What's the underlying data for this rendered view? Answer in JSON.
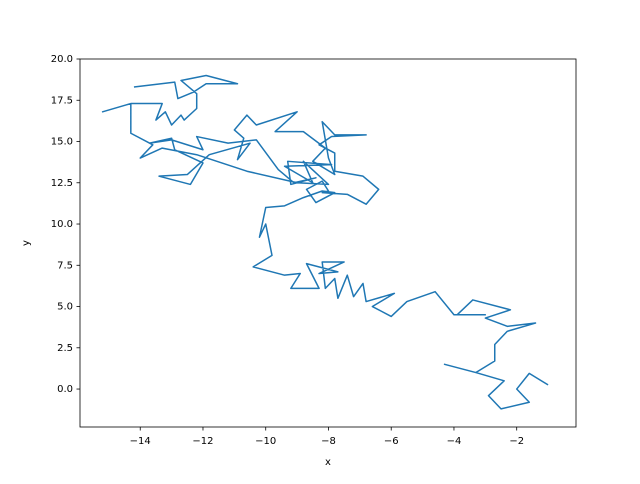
{
  "chart_data": {
    "type": "line",
    "xlabel": "x",
    "ylabel": "y",
    "xlim": [
      -15.92,
      -0.11
    ],
    "ylim": [
      -2.3,
      20.0
    ],
    "xticks": [
      {
        "value": -14,
        "label": "−14"
      },
      {
        "value": -12,
        "label": "−12"
      },
      {
        "value": -10,
        "label": "−10"
      },
      {
        "value": -8,
        "label": "−8"
      },
      {
        "value": -6,
        "label": "−6"
      },
      {
        "value": -4,
        "label": "−4"
      },
      {
        "value": -2,
        "label": "−2"
      }
    ],
    "yticks": [
      {
        "value": 0,
        "label": "0.0"
      },
      {
        "value": 2.5,
        "label": "2.5"
      },
      {
        "value": 5,
        "label": "5.0"
      },
      {
        "value": 7.5,
        "label": "7.5"
      },
      {
        "value": 10,
        "label": "10.0"
      },
      {
        "value": 12.5,
        "label": "12.5"
      },
      {
        "value": 15,
        "label": "15.0"
      },
      {
        "value": 17.5,
        "label": "17.5"
      },
      {
        "value": 20,
        "label": "20.0"
      }
    ],
    "series": [
      {
        "color": "#1f77b4",
        "x": [
          -1.0,
          -1.6,
          -2.0,
          -1.6,
          -2.5,
          -2.9,
          -2.4,
          -3.3,
          -4.3,
          -3.3,
          -2.7,
          -2.7,
          -2.3,
          -1.4,
          -2.3,
          -3.0,
          -2.2,
          -3.4,
          -3.9,
          -3.0,
          -4.0,
          -4.6,
          -5.5,
          -6.0,
          -6.6,
          -5.9,
          -6.8,
          -6.9,
          -7.2,
          -7.4,
          -7.7,
          -7.8,
          -8.1,
          -8.2,
          -7.5,
          -8.3,
          -7.7,
          -8.7,
          -8.3,
          -9.2,
          -8.9,
          -9.4,
          -10.4,
          -9.8,
          -10.0,
          -10.2,
          -10.0,
          -9.4,
          -8.8,
          -8.2,
          -7.8,
          -8.4,
          -8.7,
          -8.2,
          -8.0,
          -8.2,
          -7.4,
          -6.8,
          -6.4,
          -6.9,
          -7.8,
          -7.8,
          -8.3,
          -7.9,
          -6.8,
          -7.8,
          -8.2,
          -8.0,
          -7.8,
          -8.5,
          -8.1,
          -8.8,
          -9.7,
          -9.0,
          -10.3,
          -10.6,
          -11.0,
          -10.7,
          -10.9,
          -10.5,
          -11.8,
          -12.5,
          -13.4,
          -12.4,
          -12.0,
          -12.9,
          -13.0,
          -13.7,
          -13.0,
          -12.0,
          -12.2,
          -11.2,
          -10.3,
          -9.6,
          -9.1,
          -8.4,
          -9.2,
          -9.3,
          -7.9,
          -9.4,
          -8.5,
          -8.8,
          -8.0,
          -9.0,
          -10.6,
          -12.2,
          -13.3,
          -14.0,
          -13.6,
          -14.3,
          -14.3,
          -15.2,
          -14.3,
          -13.3,
          -13.5,
          -13.2,
          -13.0,
          -12.7,
          -12.6,
          -12.2,
          -12.2,
          -12.7,
          -11.9,
          -10.9,
          -11.9,
          -12.3,
          -12.8,
          -12.9,
          -14.2
        ],
        "y": [
          0.25,
          0.95,
          0.0,
          -0.8,
          -1.2,
          -0.4,
          0.5,
          1.0,
          1.5,
          1.0,
          1.7,
          2.7,
          3.5,
          4.0,
          3.8,
          4.3,
          4.8,
          5.4,
          4.5,
          4.5,
          4.5,
          5.9,
          5.3,
          4.4,
          5.0,
          5.8,
          5.3,
          6.4,
          5.6,
          6.9,
          5.5,
          6.7,
          6.1,
          7.7,
          7.7,
          7.0,
          7.1,
          7.6,
          6.1,
          6.1,
          7.0,
          6.9,
          7.4,
          8.1,
          10.0,
          9.2,
          11.0,
          11.1,
          11.6,
          12.0,
          11.9,
          11.3,
          12.1,
          12.6,
          12.0,
          11.9,
          11.8,
          11.2,
          12.1,
          12.9,
          13.2,
          14.3,
          14.8,
          15.3,
          15.4,
          15.4,
          16.2,
          14.0,
          13.0,
          13.8,
          14.6,
          15.6,
          15.6,
          16.8,
          16.0,
          16.6,
          15.7,
          15.2,
          13.9,
          14.9,
          14.2,
          13.0,
          12.9,
          12.4,
          13.7,
          14.5,
          15.2,
          14.9,
          15.1,
          14.5,
          15.3,
          14.9,
          15.1,
          13.3,
          12.5,
          12.8,
          12.4,
          13.8,
          13.6,
          13.5,
          12.5,
          13.8,
          12.4,
          12.5,
          13.2,
          14.2,
          14.6,
          14.0,
          14.8,
          15.5,
          17.3,
          16.8,
          17.3,
          17.3,
          16.3,
          16.8,
          16.0,
          16.6,
          16.3,
          17.0,
          17.9,
          18.7,
          19.0,
          18.5,
          18.5,
          18.0,
          17.6,
          18.6,
          18.3
        ]
      }
    ]
  }
}
